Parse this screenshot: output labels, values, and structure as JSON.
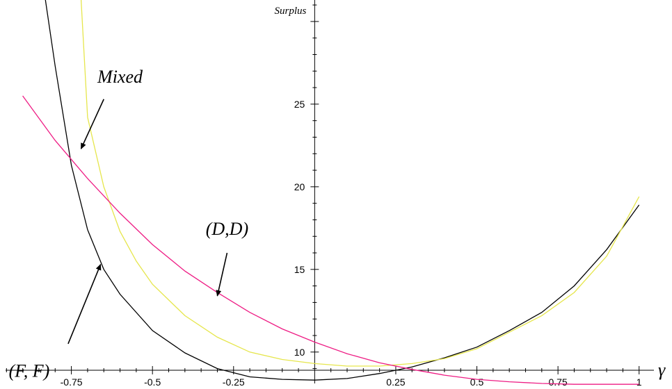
{
  "chart_data": {
    "type": "line",
    "title": "",
    "xlabel": "γ",
    "ylabel": "Surplus",
    "xlim": [
      -0.97,
      1.08
    ],
    "ylim": [
      8.1,
      31.3
    ],
    "x_origin_y": 8.9,
    "x_ticks": [
      -0.75,
      -0.5,
      -0.25,
      0.25,
      0.5,
      0.75,
      1
    ],
    "x_tick_labels": [
      "-0.75",
      "-0.5",
      "-0.25",
      "0.25",
      "0.5",
      "0.75",
      "1"
    ],
    "y_ticks": [
      10,
      15,
      20,
      25
    ],
    "y_tick_labels": [
      "10",
      "15",
      "20",
      "25"
    ],
    "grid": false,
    "legend": "none",
    "series": [
      {
        "color": "#000000",
        "points": [
          [
            -0.83,
            31.3
          ],
          [
            -0.8,
            27.3
          ],
          [
            -0.75,
            21.3
          ],
          [
            -0.7,
            17.4
          ],
          [
            -0.65,
            15.0
          ],
          [
            -0.6,
            13.5
          ],
          [
            -0.5,
            11.3
          ],
          [
            -0.4,
            9.95
          ],
          [
            -0.3,
            9.0
          ],
          [
            -0.2,
            8.5
          ],
          [
            -0.1,
            8.35
          ],
          [
            0,
            8.3
          ],
          [
            0.1,
            8.4
          ],
          [
            0.2,
            8.7
          ],
          [
            0.3,
            9.1
          ],
          [
            0.4,
            9.65
          ],
          [
            0.5,
            10.3
          ],
          [
            0.6,
            11.3
          ],
          [
            0.7,
            12.4
          ],
          [
            0.8,
            14.0
          ],
          [
            0.9,
            16.2
          ],
          [
            1.0,
            18.9
          ]
        ]
      },
      {
        "color": "#e6e64c",
        "points": [
          [
            -0.72,
            31.3
          ],
          [
            -0.7,
            24.2
          ],
          [
            -0.65,
            20.0
          ],
          [
            -0.6,
            17.3
          ],
          [
            -0.55,
            15.5
          ],
          [
            -0.5,
            14.1
          ],
          [
            -0.4,
            12.2
          ],
          [
            -0.3,
            10.9
          ],
          [
            -0.2,
            10.0
          ],
          [
            -0.1,
            9.55
          ],
          [
            0,
            9.3
          ],
          [
            0.1,
            9.15
          ],
          [
            0.2,
            9.15
          ],
          [
            0.3,
            9.3
          ],
          [
            0.4,
            9.6
          ],
          [
            0.5,
            10.2
          ],
          [
            0.6,
            11.2
          ],
          [
            0.7,
            12.2
          ],
          [
            0.8,
            13.6
          ],
          [
            0.9,
            15.8
          ],
          [
            1.0,
            19.4
          ]
        ]
      },
      {
        "color": "#ee1c84",
        "points": [
          [
            -0.9,
            25.5
          ],
          [
            -0.8,
            22.8
          ],
          [
            -0.7,
            20.5
          ],
          [
            -0.6,
            18.4
          ],
          [
            -0.5,
            16.5
          ],
          [
            -0.4,
            14.9
          ],
          [
            -0.3,
            13.6
          ],
          [
            -0.2,
            12.4
          ],
          [
            -0.1,
            11.4
          ],
          [
            0,
            10.6
          ],
          [
            0.1,
            9.9
          ],
          [
            0.2,
            9.35
          ],
          [
            0.3,
            8.95
          ],
          [
            0.4,
            8.6
          ],
          [
            0.5,
            8.35
          ],
          [
            0.6,
            8.2
          ],
          [
            0.7,
            8.1
          ],
          [
            0.8,
            8.05
          ],
          [
            0.9,
            8.05
          ],
          [
            1.0,
            8.05
          ]
        ]
      }
    ],
    "annotations": [
      {
        "text": "Mixed",
        "label_at": [
          -0.6,
          26.3
        ],
        "arrow_from": [
          -0.65,
          25.3
        ],
        "arrow_to": [
          -0.72,
          22.3
        ]
      },
      {
        "text": "(D,D)",
        "label_at": [
          -0.27,
          17.1
        ],
        "arrow_from": [
          -0.27,
          16.0
        ],
        "arrow_to": [
          -0.3,
          13.4
        ]
      },
      {
        "text": "(F, F)",
        "label_at": [
          -0.88,
          8.5
        ],
        "arrow_from": [
          -0.76,
          10.5
        ],
        "arrow_to": [
          -0.66,
          15.3
        ]
      }
    ]
  }
}
